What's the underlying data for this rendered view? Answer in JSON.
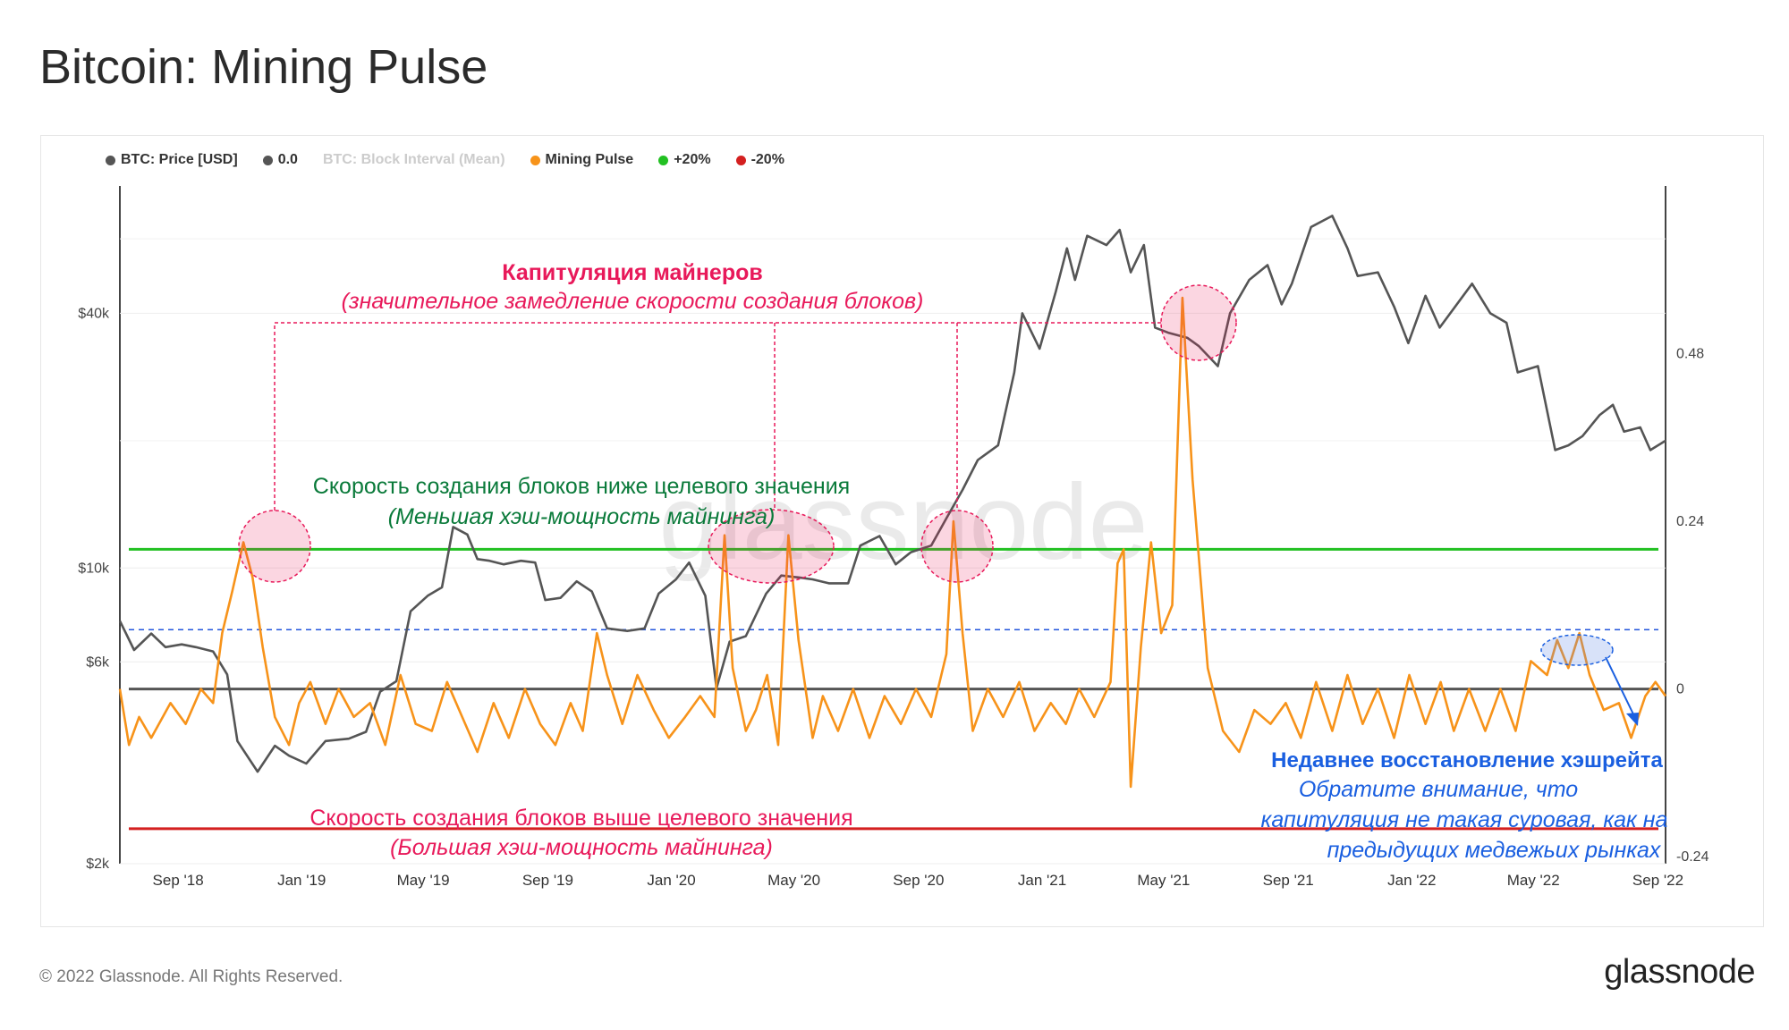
{
  "page": {
    "title": "Bitcoin: Mining Pulse",
    "copyright": "© 2022 Glassnode. All Rights Reserved.",
    "brand": "glassnode",
    "watermark": "glassnode"
  },
  "legend": [
    {
      "label": "BTC: Price [USD]",
      "color": "#555555",
      "muted": false
    },
    {
      "label": "0.0",
      "color": "#555555",
      "muted": false
    },
    {
      "label": "BTC: Block Interval (Mean)",
      "color": "#cccccc",
      "muted": true
    },
    {
      "label": "Mining Pulse",
      "color": "#f7931a",
      "muted": false
    },
    {
      "label": "+20%",
      "color": "#22c022",
      "muted": false
    },
    {
      "label": "-20%",
      "color": "#d42020",
      "muted": false
    }
  ],
  "annotations": {
    "capitulation_title": "Капитуляция майнеров",
    "capitulation_sub": "(значительное замедление скорости создания блоков)",
    "slow_title": "Скорость создания блоков ниже целевого значения",
    "slow_sub": "(Меньшая хэш-мощность майнинга)",
    "fast_title": "Скорость создания блоков выше целевого значения",
    "fast_sub": "(Большая хэш-мощность майнинга)",
    "recovery_title": "Недавнее восстановление хэшрейта",
    "recovery_line1": "Обратите внимание, что",
    "recovery_line2": "капитуляция не такая суровая, как на",
    "recovery_line3": "предыдущих медвежьих рынках"
  },
  "colors": {
    "price": "#555555",
    "pulse": "#f7931a",
    "plus20": "#22c022",
    "minus20": "#d42020",
    "zero": "#555555",
    "capitulation": "#e8195a",
    "slow_text": "#0a7a3a",
    "recovery": "#1a5fe0"
  },
  "chart_data": {
    "type": "line",
    "title": "Bitcoin: Mining Pulse",
    "x_ticks": [
      "Sep '18",
      "Jan '19",
      "May '19",
      "Sep '19",
      "Jan '20",
      "May '20",
      "Sep '20",
      "Jan '21",
      "May '21",
      "Sep '21",
      "Jan '22",
      "May '22",
      "Sep '22"
    ],
    "x_range": [
      "2018-08-01",
      "2022-10-05"
    ],
    "y_left": {
      "label": "",
      "scale": "log",
      "ticks": [
        "$2k",
        "$6k",
        "$10k",
        "$40k"
      ],
      "tick_values": [
        2000,
        6000,
        10000,
        40000
      ],
      "range": [
        2000,
        80000
      ]
    },
    "y_right": {
      "label": "",
      "ticks": [
        "-0.24",
        "0",
        "0.24",
        "0.48"
      ],
      "tick_values": [
        -0.24,
        0,
        0.24,
        0.48
      ],
      "range": [
        -0.25,
        0.72
      ]
    },
    "reference_lines": [
      {
        "name": "+20%",
        "axis": "right",
        "value": 0.2
      },
      {
        "name": "-20%",
        "axis": "right",
        "value": -0.2
      },
      {
        "name": "0.0",
        "axis": "right",
        "value": 0.0
      },
      {
        "name": "",
        "axis": "right",
        "value": 0.085
      }
    ],
    "series": [
      {
        "name": "BTC: Price [USD]",
        "axis": "left",
        "points": [
          [
            "2018-08-01",
            7500
          ],
          [
            "2018-08-15",
            6400
          ],
          [
            "2018-09-01",
            7000
          ],
          [
            "2018-09-15",
            6500
          ],
          [
            "2018-10-01",
            6600
          ],
          [
            "2018-10-15",
            6500
          ],
          [
            "2018-11-01",
            6350
          ],
          [
            "2018-11-15",
            5600
          ],
          [
            "2018-11-25",
            3900
          ],
          [
            "2018-12-15",
            3300
          ],
          [
            "2019-01-01",
            3800
          ],
          [
            "2019-01-15",
            3600
          ],
          [
            "2019-02-01",
            3450
          ],
          [
            "2019-02-20",
            3900
          ],
          [
            "2019-03-15",
            3950
          ],
          [
            "2019-04-01",
            4100
          ],
          [
            "2019-04-15",
            5100
          ],
          [
            "2019-05-01",
            5400
          ],
          [
            "2019-05-15",
            7900
          ],
          [
            "2019-06-01",
            8600
          ],
          [
            "2019-06-15",
            9000
          ],
          [
            "2019-06-26",
            12500
          ],
          [
            "2019-07-10",
            12000
          ],
          [
            "2019-07-20",
            10500
          ],
          [
            "2019-08-01",
            10400
          ],
          [
            "2019-08-15",
            10200
          ],
          [
            "2019-09-01",
            10400
          ],
          [
            "2019-09-15",
            10300
          ],
          [
            "2019-09-25",
            8400
          ],
          [
            "2019-10-10",
            8500
          ],
          [
            "2019-10-26",
            9300
          ],
          [
            "2019-11-10",
            8800
          ],
          [
            "2019-11-25",
            7200
          ],
          [
            "2019-12-15",
            7100
          ],
          [
            "2020-01-01",
            7200
          ],
          [
            "2020-01-15",
            8700
          ],
          [
            "2020-02-01",
            9400
          ],
          [
            "2020-02-14",
            10300
          ],
          [
            "2020-03-01",
            8600
          ],
          [
            "2020-03-12",
            5200
          ],
          [
            "2020-03-25",
            6700
          ],
          [
            "2020-04-10",
            6900
          ],
          [
            "2020-04-30",
            8700
          ],
          [
            "2020-05-15",
            9600
          ],
          [
            "2020-06-01",
            9500
          ],
          [
            "2020-06-15",
            9400
          ],
          [
            "2020-07-01",
            9200
          ],
          [
            "2020-07-20",
            9200
          ],
          [
            "2020-08-01",
            11300
          ],
          [
            "2020-08-20",
            11900
          ],
          [
            "2020-09-05",
            10200
          ],
          [
            "2020-09-20",
            10900
          ],
          [
            "2020-10-10",
            11300
          ],
          [
            "2020-10-25",
            13100
          ],
          [
            "2020-11-10",
            15300
          ],
          [
            "2020-11-25",
            18000
          ],
          [
            "2020-12-15",
            19500
          ],
          [
            "2020-12-31",
            29000
          ],
          [
            "2021-01-08",
            40000
          ],
          [
            "2021-01-25",
            33000
          ],
          [
            "2021-02-10",
            45000
          ],
          [
            "2021-02-21",
            57000
          ],
          [
            "2021-03-01",
            48000
          ],
          [
            "2021-03-13",
            61000
          ],
          [
            "2021-04-01",
            58000
          ],
          [
            "2021-04-14",
            63000
          ],
          [
            "2021-04-25",
            50000
          ],
          [
            "2021-05-08",
            58000
          ],
          [
            "2021-05-19",
            37000
          ],
          [
            "2021-06-01",
            36000
          ],
          [
            "2021-06-20",
            35000
          ],
          [
            "2021-07-01",
            33500
          ],
          [
            "2021-07-20",
            30000
          ],
          [
            "2021-08-01",
            40000
          ],
          [
            "2021-08-20",
            48000
          ],
          [
            "2021-09-07",
            52000
          ],
          [
            "2021-09-21",
            42000
          ],
          [
            "2021-10-01",
            47000
          ],
          [
            "2021-10-20",
            64000
          ],
          [
            "2021-11-10",
            68000
          ],
          [
            "2021-11-25",
            57000
          ],
          [
            "2021-12-05",
            49000
          ],
          [
            "2021-12-25",
            50000
          ],
          [
            "2022-01-10",
            41500
          ],
          [
            "2022-01-24",
            34000
          ],
          [
            "2022-02-10",
            44000
          ],
          [
            "2022-02-24",
            37000
          ],
          [
            "2022-03-28",
            47000
          ],
          [
            "2022-04-15",
            40000
          ],
          [
            "2022-05-01",
            38000
          ],
          [
            "2022-05-12",
            29000
          ],
          [
            "2022-06-01",
            30000
          ],
          [
            "2022-06-18",
            19000
          ],
          [
            "2022-07-01",
            19500
          ],
          [
            "2022-07-15",
            20500
          ],
          [
            "2022-08-01",
            23000
          ],
          [
            "2022-08-14",
            24300
          ],
          [
            "2022-08-25",
            21000
          ],
          [
            "2022-09-10",
            21500
          ],
          [
            "2022-09-20",
            19000
          ],
          [
            "2022-10-05",
            20000
          ]
        ]
      },
      {
        "name": "Mining Pulse",
        "axis": "right",
        "points": [
          [
            "2018-08-01",
            0.0
          ],
          [
            "2018-08-10",
            -0.08
          ],
          [
            "2018-08-20",
            -0.04
          ],
          [
            "2018-09-01",
            -0.07
          ],
          [
            "2018-09-20",
            -0.02
          ],
          [
            "2018-10-05",
            -0.05
          ],
          [
            "2018-10-20",
            0.0
          ],
          [
            "2018-11-01",
            -0.02
          ],
          [
            "2018-11-10",
            0.08
          ],
          [
            "2018-11-20",
            0.14
          ],
          [
            "2018-12-01",
            0.21
          ],
          [
            "2018-12-10",
            0.16
          ],
          [
            "2018-12-20",
            0.06
          ],
          [
            "2019-01-01",
            -0.04
          ],
          [
            "2019-01-15",
            -0.08
          ],
          [
            "2019-01-25",
            -0.02
          ],
          [
            "2019-02-05",
            0.01
          ],
          [
            "2019-02-20",
            -0.05
          ],
          [
            "2019-03-05",
            0.0
          ],
          [
            "2019-03-20",
            -0.04
          ],
          [
            "2019-04-05",
            -0.02
          ],
          [
            "2019-04-20",
            -0.08
          ],
          [
            "2019-05-05",
            0.02
          ],
          [
            "2019-05-20",
            -0.05
          ],
          [
            "2019-06-05",
            -0.06
          ],
          [
            "2019-06-20",
            0.01
          ],
          [
            "2019-07-05",
            -0.04
          ],
          [
            "2019-07-20",
            -0.09
          ],
          [
            "2019-08-05",
            -0.02
          ],
          [
            "2019-08-20",
            -0.07
          ],
          [
            "2019-09-05",
            0.0
          ],
          [
            "2019-09-20",
            -0.05
          ],
          [
            "2019-10-05",
            -0.08
          ],
          [
            "2019-10-20",
            -0.02
          ],
          [
            "2019-11-01",
            -0.06
          ],
          [
            "2019-11-15",
            0.08
          ],
          [
            "2019-11-25",
            0.02
          ],
          [
            "2019-12-10",
            -0.05
          ],
          [
            "2019-12-25",
            0.02
          ],
          [
            "2020-01-10",
            -0.03
          ],
          [
            "2020-01-25",
            -0.07
          ],
          [
            "2020-02-10",
            -0.04
          ],
          [
            "2020-02-25",
            -0.01
          ],
          [
            "2020-03-10",
            -0.04
          ],
          [
            "2020-03-20",
            0.22
          ],
          [
            "2020-03-28",
            0.03
          ],
          [
            "2020-04-10",
            -0.06
          ],
          [
            "2020-04-20",
            -0.03
          ],
          [
            "2020-05-01",
            0.02
          ],
          [
            "2020-05-12",
            -0.08
          ],
          [
            "2020-05-22",
            0.22
          ],
          [
            "2020-06-01",
            0.07
          ],
          [
            "2020-06-15",
            -0.07
          ],
          [
            "2020-06-25",
            -0.01
          ],
          [
            "2020-07-10",
            -0.06
          ],
          [
            "2020-07-25",
            0.0
          ],
          [
            "2020-08-10",
            -0.07
          ],
          [
            "2020-08-25",
            -0.01
          ],
          [
            "2020-09-10",
            -0.05
          ],
          [
            "2020-09-25",
            0.0
          ],
          [
            "2020-10-10",
            -0.04
          ],
          [
            "2020-10-25",
            0.05
          ],
          [
            "2020-11-01",
            0.24
          ],
          [
            "2020-11-10",
            0.08
          ],
          [
            "2020-11-20",
            -0.06
          ],
          [
            "2020-12-05",
            0.0
          ],
          [
            "2020-12-20",
            -0.04
          ],
          [
            "2021-01-05",
            0.01
          ],
          [
            "2021-01-20",
            -0.06
          ],
          [
            "2021-02-05",
            -0.02
          ],
          [
            "2021-02-20",
            -0.05
          ],
          [
            "2021-03-05",
            0.0
          ],
          [
            "2021-03-20",
            -0.04
          ],
          [
            "2021-04-05",
            0.01
          ],
          [
            "2021-04-12",
            0.18
          ],
          [
            "2021-04-18",
            0.2
          ],
          [
            "2021-04-25",
            -0.14
          ],
          [
            "2021-05-05",
            0.06
          ],
          [
            "2021-05-15",
            0.21
          ],
          [
            "2021-05-25",
            0.08
          ],
          [
            "2021-06-05",
            0.12
          ],
          [
            "2021-06-15",
            0.56
          ],
          [
            "2021-06-25",
            0.3
          ],
          [
            "2021-07-10",
            0.03
          ],
          [
            "2021-07-25",
            -0.06
          ],
          [
            "2021-08-10",
            -0.09
          ],
          [
            "2021-08-25",
            -0.03
          ],
          [
            "2021-09-10",
            -0.05
          ],
          [
            "2021-09-25",
            -0.02
          ],
          [
            "2021-10-10",
            -0.07
          ],
          [
            "2021-10-25",
            0.01
          ],
          [
            "2021-11-10",
            -0.06
          ],
          [
            "2021-11-25",
            0.02
          ],
          [
            "2021-12-10",
            -0.05
          ],
          [
            "2021-12-25",
            0.0
          ],
          [
            "2022-01-10",
            -0.07
          ],
          [
            "2022-01-25",
            0.02
          ],
          [
            "2022-02-10",
            -0.05
          ],
          [
            "2022-02-25",
            0.01
          ],
          [
            "2022-03-10",
            -0.06
          ],
          [
            "2022-03-25",
            0.0
          ],
          [
            "2022-04-10",
            -0.06
          ],
          [
            "2022-04-25",
            0.0
          ],
          [
            "2022-05-10",
            -0.06
          ],
          [
            "2022-05-25",
            0.04
          ],
          [
            "2022-06-10",
            0.02
          ],
          [
            "2022-06-20",
            0.07
          ],
          [
            "2022-07-01",
            0.03
          ],
          [
            "2022-07-12",
            0.08
          ],
          [
            "2022-07-22",
            0.02
          ],
          [
            "2022-08-05",
            -0.03
          ],
          [
            "2022-08-20",
            -0.02
          ],
          [
            "2022-09-01",
            -0.07
          ],
          [
            "2022-09-15",
            -0.01
          ],
          [
            "2022-09-25",
            0.01
          ],
          [
            "2022-10-05",
            -0.01
          ]
        ]
      }
    ]
  }
}
